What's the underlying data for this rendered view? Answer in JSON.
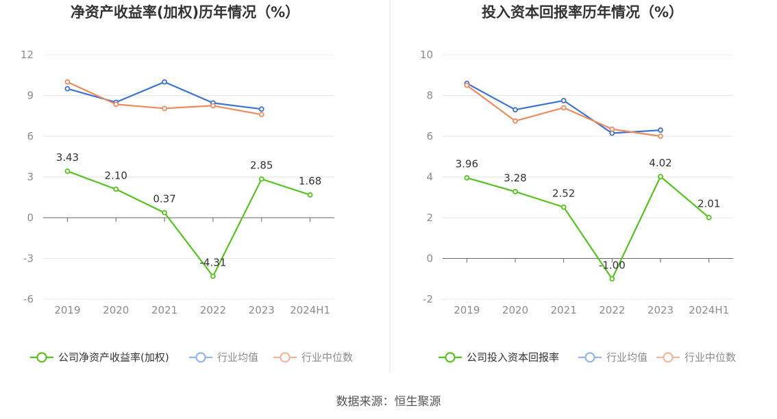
{
  "colors": {
    "company": "#52c41a",
    "industry_avg": "#3a72d8",
    "industry_median": "#f08a5d",
    "legend_avg": "#92b4f0",
    "legend_median": "#f6b59b",
    "grid": "#e8e8e8",
    "axis": "#666666",
    "divider": "#e5e5e5"
  },
  "source_text": "数据来源：恒生聚源",
  "chart_data": [
    {
      "type": "line",
      "title": "净资产收益率(加权)历年情况（%）",
      "categories": [
        "2019",
        "2020",
        "2021",
        "2022",
        "2023",
        "2024H1"
      ],
      "yticks": [
        "12",
        "9",
        "6",
        "3",
        "0",
        "-3",
        "-6"
      ],
      "ylim": [
        -6,
        12
      ],
      "grid": true,
      "legend_position": "bottom",
      "series": [
        {
          "name": "公司净资产收益率(加权)",
          "role": "company",
          "values": [
            3.43,
            2.1,
            0.37,
            -4.31,
            2.85,
            1.68
          ],
          "labels": [
            "3.43",
            "2.10",
            "0.37",
            "-4.31",
            "2.85",
            "1.68"
          ]
        },
        {
          "name": "行业均值",
          "role": "industry_avg",
          "values": [
            9.5,
            8.5,
            10.0,
            8.45,
            8.0,
            null
          ]
        },
        {
          "name": "行业中位数",
          "role": "industry_median",
          "values": [
            10.0,
            8.35,
            8.05,
            8.25,
            7.6,
            null
          ]
        }
      ]
    },
    {
      "type": "line",
      "title": "投入资本回报率历年情况（%）",
      "categories": [
        "2019",
        "2020",
        "2021",
        "2022",
        "2023",
        "2024H1"
      ],
      "yticks": [
        "10",
        "8",
        "6",
        "4",
        "2",
        "0",
        "-2"
      ],
      "ylim": [
        -2,
        10
      ],
      "grid": true,
      "legend_position": "bottom",
      "series": [
        {
          "name": "公司投入资本回报率",
          "role": "company",
          "values": [
            3.96,
            3.28,
            2.52,
            -1.0,
            4.02,
            2.01
          ],
          "labels": [
            "3.96",
            "3.28",
            "2.52",
            "-1.00",
            "4.02",
            "2.01"
          ]
        },
        {
          "name": "行业均值",
          "role": "industry_avg",
          "values": [
            8.6,
            7.3,
            7.75,
            6.15,
            6.3,
            null
          ]
        },
        {
          "name": "行业中位数",
          "role": "industry_median",
          "values": [
            8.5,
            6.75,
            7.4,
            6.35,
            6.0,
            null
          ]
        }
      ]
    }
  ]
}
